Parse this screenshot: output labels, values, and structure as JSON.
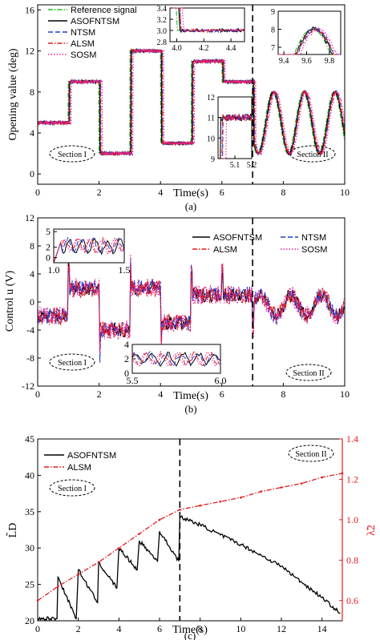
{
  "chart_data": [
    {
      "panel": "(a)",
      "type": "line",
      "xlabel": "Time(s)",
      "ylabel": "Opening value (deg)",
      "xlim": [
        0,
        10
      ],
      "ylim": [
        -1,
        16.5
      ],
      "xticks": [
        "0",
        "2",
        "4",
        "6",
        "8",
        "10"
      ],
      "yticks": [
        "0",
        "4",
        "8",
        "12",
        "16"
      ],
      "section_labels": [
        "Section I",
        "Section II"
      ],
      "divider_x": 7,
      "reference_steps": [
        [
          0,
          5
        ],
        [
          1,
          9
        ],
        [
          2,
          2
        ],
        [
          3,
          12
        ],
        [
          4,
          3
        ],
        [
          5,
          11
        ],
        [
          6,
          9
        ],
        [
          7,
          9
        ]
      ],
      "sine_after_divider": {
        "center": 5,
        "amplitude": 3,
        "period_s": 1,
        "peak_time_s": 7.65
      },
      "series": [
        {
          "name": "Reference signal",
          "color": "#22bb22",
          "style": "dashdot"
        },
        {
          "name": "ASOFNTSM",
          "color": "#000000",
          "style": "solid"
        },
        {
          "name": "NTSM",
          "color": "#1f3fd1",
          "style": "dash"
        },
        {
          "name": "ALSM",
          "color": "#e31a1c",
          "style": "dashdot"
        },
        {
          "name": "SOSM",
          "color": "#e8259a",
          "style": "dot"
        }
      ],
      "insets": [
        {
          "xlim": [
            3.95,
            4.5
          ],
          "ylim": [
            2.8,
            3.4
          ],
          "xticks": [
            "4.0",
            "4.2",
            "4.4"
          ],
          "yticks": [
            "2.8",
            "3.0",
            "3.2",
            "3.4"
          ]
        },
        {
          "xlim": [
            9.35,
            9.9
          ],
          "ylim": [
            6.6,
            9
          ],
          "xticks": [
            "9.4",
            "9.6",
            "9.8"
          ],
          "yticks": [
            "7",
            "8",
            "9"
          ]
        },
        {
          "xlim": [
            5,
            5.2
          ],
          "ylim": [
            9,
            12
          ],
          "xticks": [
            "5.1",
            "5.2"
          ],
          "yticks": [
            "9",
            "10",
            "11",
            "12"
          ]
        }
      ],
      "caption": "(a)"
    },
    {
      "panel": "(b)",
      "type": "line",
      "xlabel": "Time(s)",
      "ylabel": "Control u (V)",
      "xlim": [
        0,
        10
      ],
      "ylim": [
        -12,
        12
      ],
      "xticks": [
        "0",
        "2",
        "4",
        "6",
        "8",
        "10"
      ],
      "yticks": [
        "-12",
        "-8",
        "-4",
        "0",
        "4",
        "8",
        "12"
      ],
      "section_labels": [
        "Section I",
        "Section II"
      ],
      "divider_x": 7,
      "series": [
        {
          "name": "ASOFNTSM",
          "color": "#000000",
          "style": "solid"
        },
        {
          "name": "NTSM",
          "color": "#1f3fd1",
          "style": "dash"
        },
        {
          "name": "ALSM",
          "color": "#e31a1c",
          "style": "dashdot"
        },
        {
          "name": "SOSM",
          "color": "#e8259a",
          "style": "dot"
        }
      ],
      "insets": [
        {
          "xlim": [
            1.0,
            1.5
          ],
          "ylim": [
            -1,
            5.5
          ],
          "xticks": [
            "1.0",
            "1.5"
          ],
          "yticks": [
            "0",
            "2",
            "5"
          ]
        },
        {
          "xlim": [
            5.5,
            6.0
          ],
          "ylim": [
            0,
            4
          ],
          "xticks": [
            "5.5",
            "6.0"
          ],
          "yticks": [
            "0",
            "2",
            "4"
          ]
        }
      ],
      "caption": "(b)"
    },
    {
      "panel": "(c)",
      "type": "line",
      "xlabel": "Time(s)",
      "ylabel_left": "L̃D",
      "ylabel_right": "λ̃2",
      "xlim": [
        0,
        15
      ],
      "ylim_left": [
        20,
        45
      ],
      "ylim_right": [
        0.5,
        1.4
      ],
      "xticks": [
        "0",
        "2",
        "4",
        "6",
        "8",
        "10",
        "12",
        "14"
      ],
      "yticks_left": [
        "20",
        "25",
        "30",
        "35",
        "40",
        "45"
      ],
      "yticks_right": [
        "0.6",
        "0.8",
        "1.0",
        "1.2",
        "1.4"
      ],
      "section_labels": [
        "Section I",
        "Section II"
      ],
      "divider_x": 7,
      "series": [
        {
          "name": "ASOFNTSM",
          "color": "#000000",
          "style": "solid",
          "axis": "left",
          "x": [
            0,
            0.95,
            1.0,
            1.9,
            2.0,
            2.95,
            3.0,
            3.9,
            4.0,
            4.9,
            5.0,
            5.9,
            6.0,
            6.95,
            7.0,
            8,
            9,
            10,
            11,
            12,
            13,
            14,
            14.9
          ],
          "y": [
            20.3,
            20.3,
            26,
            20.3,
            27,
            22.5,
            28,
            24.5,
            30,
            27,
            31,
            28.2,
            32.3,
            28.2,
            34.3,
            33.2,
            31.8,
            30.5,
            29,
            27.5,
            25.3,
            23.2,
            21
          ]
        },
        {
          "name": "ALSM",
          "color": "#e31a1c",
          "style": "dashdot",
          "axis": "right",
          "x": [
            0,
            1,
            2,
            3,
            4,
            5,
            6,
            7,
            8,
            9,
            10,
            11,
            12,
            13,
            14,
            15
          ],
          "y": [
            0.6,
            0.67,
            0.73,
            0.79,
            0.86,
            0.93,
            1.0,
            1.05,
            1.07,
            1.09,
            1.11,
            1.14,
            1.16,
            1.18,
            1.21,
            1.23
          ]
        }
      ],
      "caption": "(c)"
    }
  ]
}
